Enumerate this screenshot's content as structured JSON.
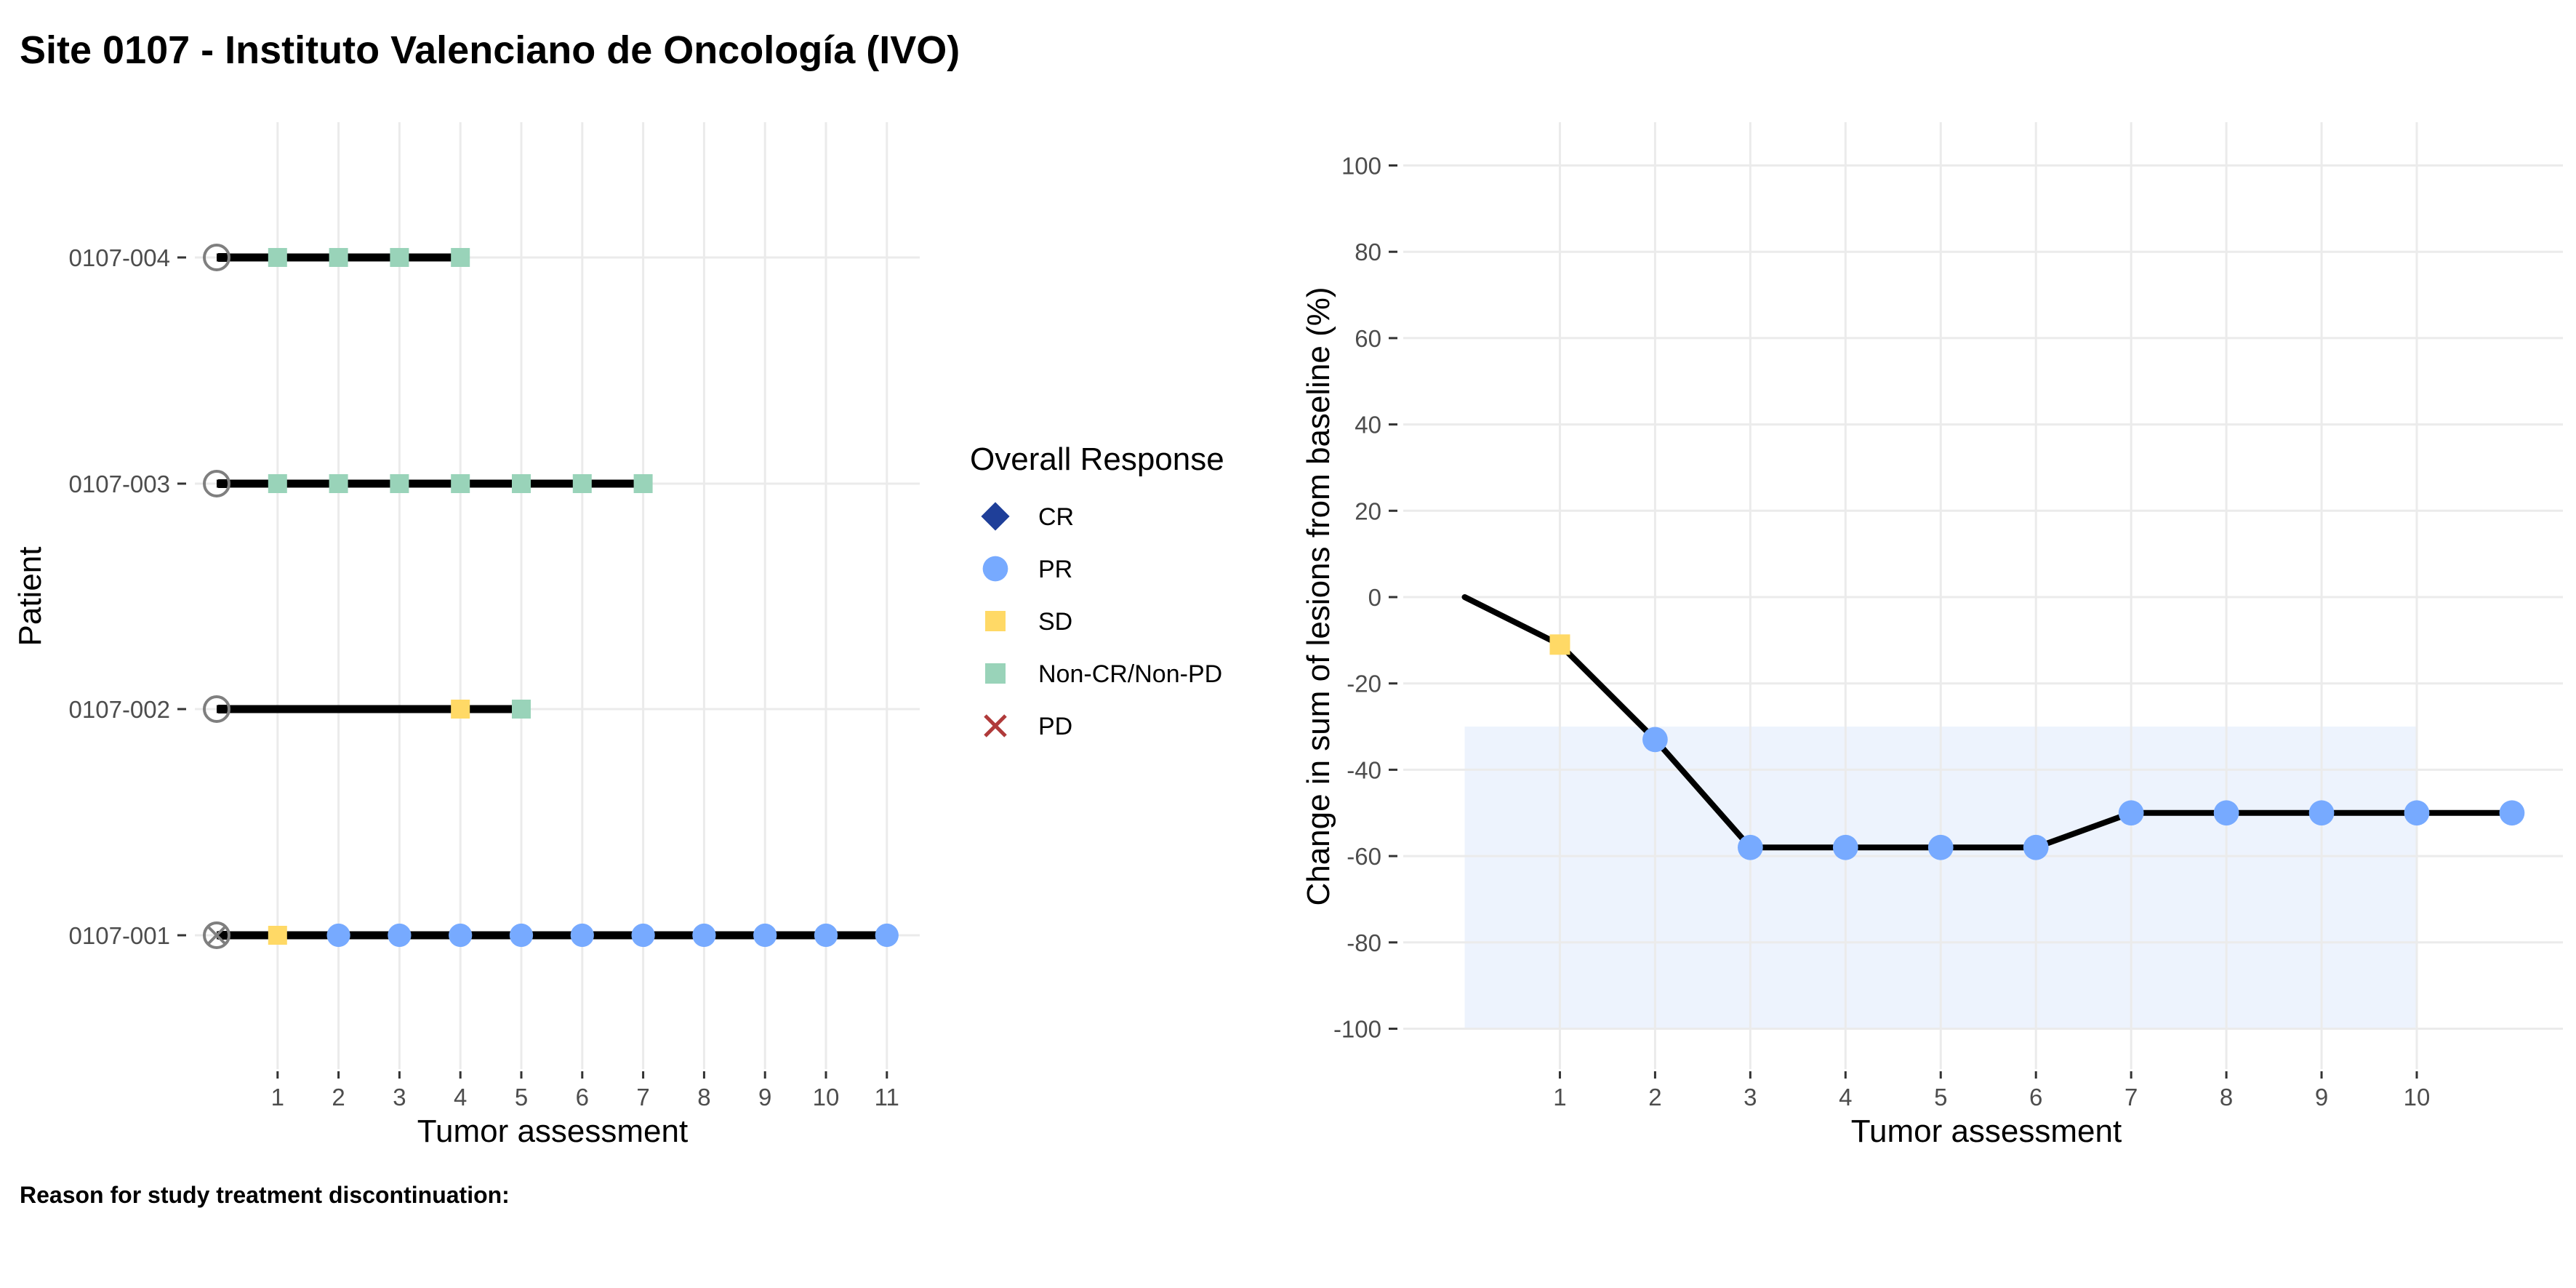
{
  "page": {
    "title": "Site 0107 - Instituto Valenciano de Oncología (IVO)",
    "footnote": "Reason for study treatment discontinuation:"
  },
  "colors": {
    "CR": "#1f3f99",
    "PR": "#77aaff",
    "SD": "#ffd966",
    "Non-CR/Non-PD": "#99d3b9",
    "PD": "#b03a3a",
    "grid": "#ebebeb",
    "band": "#edf3fd",
    "line": "#000000",
    "end_marker": "#7f7f7f"
  },
  "chart_data": [
    {
      "type": "swimmer",
      "xlabel": "Tumor assessment",
      "ylabel": "Patient",
      "x_ticks": [
        "1",
        "2",
        "3",
        "4",
        "5",
        "6",
        "7",
        "8",
        "9",
        "10",
        "11"
      ],
      "patients": [
        {
          "id": "0107-004",
          "end_marker": "circle",
          "assessments": [
            {
              "x": 1,
              "response": "Non-CR/Non-PD"
            },
            {
              "x": 2,
              "response": "Non-CR/Non-PD"
            },
            {
              "x": 3,
              "response": "Non-CR/Non-PD"
            },
            {
              "x": 4,
              "response": "Non-CR/Non-PD"
            }
          ]
        },
        {
          "id": "0107-003",
          "end_marker": "circle",
          "assessments": [
            {
              "x": 1,
              "response": "Non-CR/Non-PD"
            },
            {
              "x": 2,
              "response": "Non-CR/Non-PD"
            },
            {
              "x": 3,
              "response": "Non-CR/Non-PD"
            },
            {
              "x": 4,
              "response": "Non-CR/Non-PD"
            },
            {
              "x": 5,
              "response": "Non-CR/Non-PD"
            },
            {
              "x": 6,
              "response": "Non-CR/Non-PD"
            },
            {
              "x": 7,
              "response": "Non-CR/Non-PD"
            }
          ]
        },
        {
          "id": "0107-002",
          "end_marker": "circle",
          "assessments": [
            {
              "x": 4,
              "response": "SD"
            },
            {
              "x": 5,
              "response": "Non-CR/Non-PD"
            }
          ]
        },
        {
          "id": "0107-001",
          "end_marker": "circle-x",
          "assessments": [
            {
              "x": 1,
              "response": "SD"
            },
            {
              "x": 2,
              "response": "PR"
            },
            {
              "x": 3,
              "response": "PR"
            },
            {
              "x": 4,
              "response": "PR"
            },
            {
              "x": 5,
              "response": "PR"
            },
            {
              "x": 6,
              "response": "PR"
            },
            {
              "x": 7,
              "response": "PR"
            },
            {
              "x": 8,
              "response": "PR"
            },
            {
              "x": 9,
              "response": "PR"
            },
            {
              "x": 10,
              "response": "PR"
            },
            {
              "x": 11,
              "response": "PR"
            }
          ]
        }
      ],
      "legend": {
        "title": "Overall Response",
        "entries": [
          {
            "label": "CR",
            "shape": "diamond"
          },
          {
            "label": "PR",
            "shape": "circle"
          },
          {
            "label": "SD",
            "shape": "square"
          },
          {
            "label": "Non-CR/Non-PD",
            "shape": "square"
          },
          {
            "label": "PD",
            "shape": "x"
          }
        ]
      }
    },
    {
      "type": "line",
      "xlabel": "Tumor assessment",
      "ylabel": "Change in sum of lesions from baseline (%)",
      "x_ticks": [
        "1",
        "2",
        "3",
        "4",
        "5",
        "6",
        "7",
        "8",
        "9",
        "10"
      ],
      "y_ticks": [
        "100",
        "80",
        "60",
        "40",
        "20",
        "0",
        "-20",
        "-40",
        "-60",
        "-80",
        "-100"
      ],
      "xlim": [
        -1,
        11.5
      ],
      "ylim": [
        -100,
        100
      ],
      "band": {
        "x": [
          0,
          10
        ],
        "y": [
          -100,
          -30
        ]
      },
      "baseline_point": {
        "x": 0,
        "y": 0
      },
      "points": [
        {
          "x": 1,
          "y": -11,
          "response": "SD"
        },
        {
          "x": 2,
          "y": -33,
          "response": "PR"
        },
        {
          "x": 3,
          "y": -58,
          "response": "PR"
        },
        {
          "x": 4,
          "y": -58,
          "response": "PR"
        },
        {
          "x": 5,
          "y": -58,
          "response": "PR"
        },
        {
          "x": 6,
          "y": -58,
          "response": "PR"
        },
        {
          "x": 7,
          "y": -50,
          "response": "PR"
        },
        {
          "x": 8,
          "y": -50,
          "response": "PR"
        },
        {
          "x": 9,
          "y": -50,
          "response": "PR"
        },
        {
          "x": 10,
          "y": -50,
          "response": "PR"
        },
        {
          "x": 11,
          "y": -50,
          "response": "PR"
        }
      ]
    }
  ]
}
